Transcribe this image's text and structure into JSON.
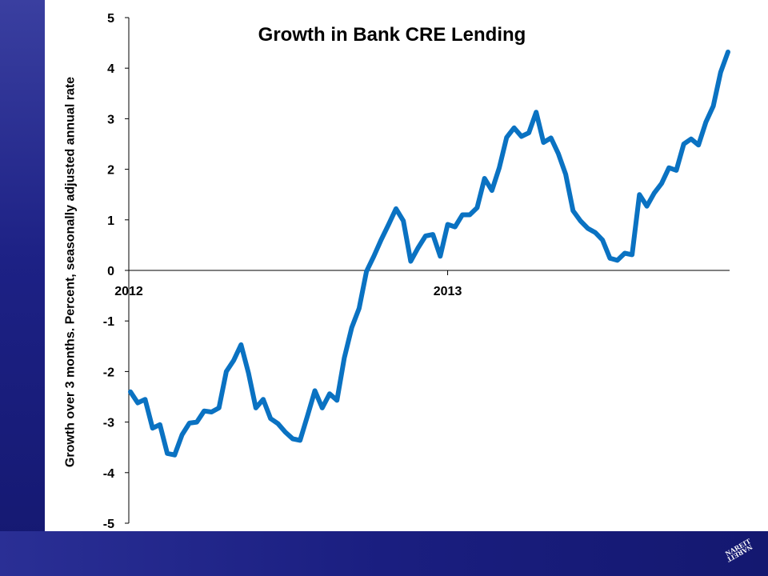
{
  "chart_data": {
    "type": "line",
    "title": "Growth in Bank CRE Lending",
    "ylabel": "Growth  over 3 months. Percent, seasonally adjusted annual rate",
    "ylim": [
      -5,
      5
    ],
    "yticks": [
      "5",
      "4",
      "3",
      "2",
      "1",
      "0",
      "-1",
      "-2",
      "-3",
      "-4",
      "-5"
    ],
    "xticks": [
      "2012",
      "2013"
    ],
    "line_color": "#0a72c2",
    "series": [
      {
        "values": [
          -2.4,
          -2.62,
          -2.55,
          -3.12,
          -3.05,
          -3.62,
          -3.65,
          -3.25,
          -3.02,
          -3.0,
          -2.78,
          -2.8,
          -2.72,
          -2.0,
          -1.78,
          -1.47,
          -2.03,
          -2.72,
          -2.55,
          -2.93,
          -3.03,
          -3.2,
          -3.33,
          -3.36,
          -2.88,
          -2.38,
          -2.72,
          -2.44,
          -2.57,
          -1.73,
          -1.13,
          -0.75,
          -0.02,
          0.28,
          0.61,
          0.91,
          1.22,
          0.98,
          0.18,
          0.45,
          0.68,
          0.71,
          0.28,
          0.91,
          0.86,
          1.1,
          1.1,
          1.24,
          1.82,
          1.58,
          2.03,
          2.63,
          2.82,
          2.65,
          2.72,
          3.13,
          2.53,
          2.62,
          2.31,
          1.9,
          1.18,
          0.98,
          0.83,
          0.75,
          0.6,
          0.24,
          0.2,
          0.34,
          0.31,
          1.5,
          1.27,
          1.53,
          1.72,
          2.03,
          1.98,
          2.5,
          2.6,
          2.48,
          2.93,
          3.25,
          3.92,
          4.32
        ]
      }
    ]
  },
  "branding": {
    "logo_text": "NAREIT",
    "logo_icon": "nareit-logo-icon"
  }
}
